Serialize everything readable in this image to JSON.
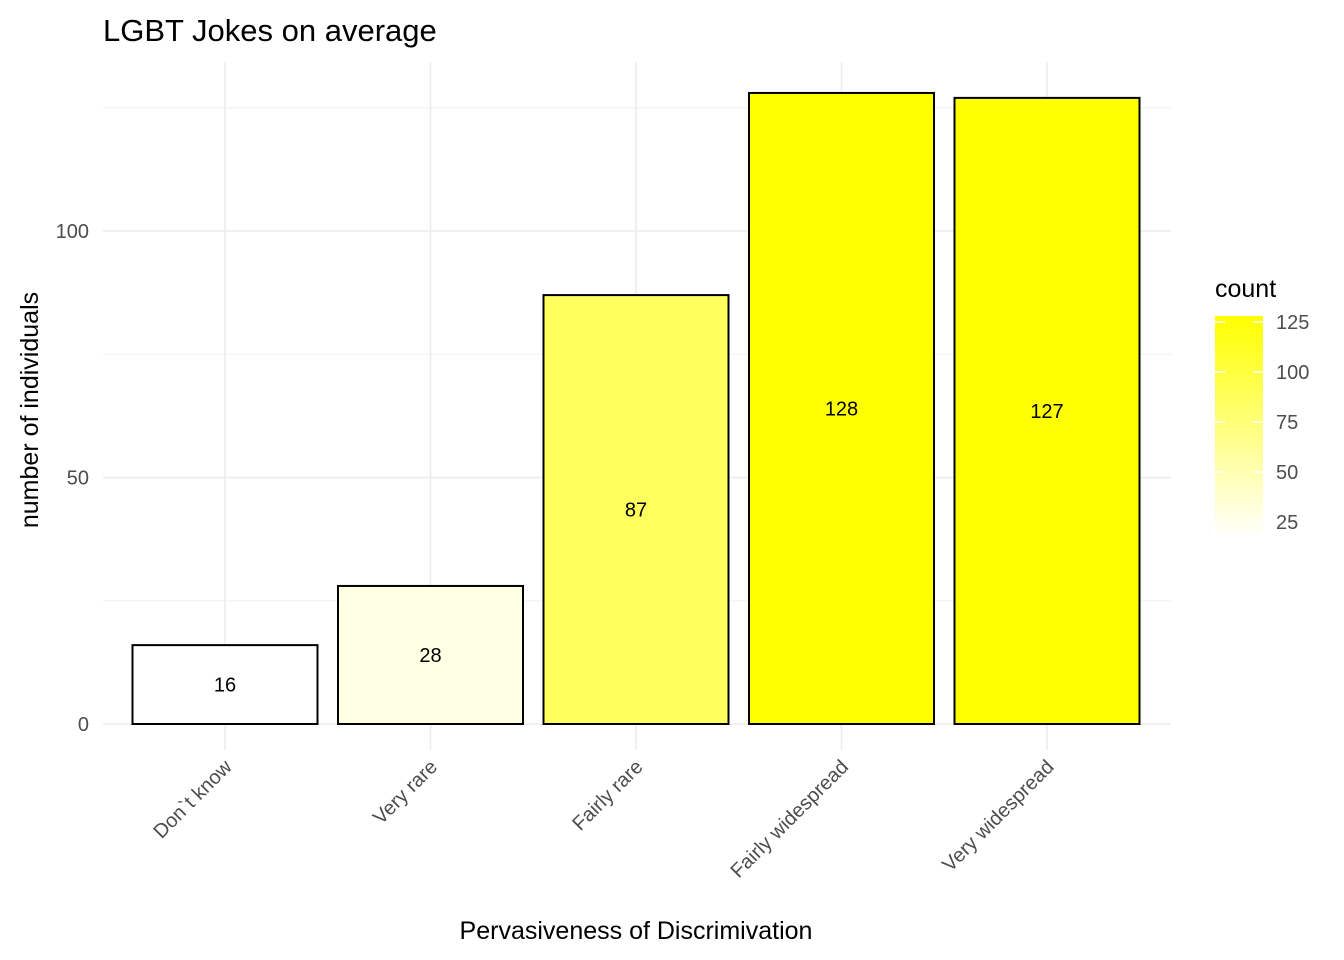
{
  "chart_data": {
    "type": "bar",
    "title": "LGBT Jokes on average",
    "xlabel": "Pervasiveness of Discrimivation",
    "ylabel": "number of individuals",
    "categories": [
      "Don`t know",
      "Very rare",
      "Fairly rare",
      "Fairly widespread",
      "Very widespread"
    ],
    "values": [
      16,
      28,
      87,
      128,
      127
    ],
    "data_labels": [
      "16",
      "28",
      "87",
      "128",
      "127"
    ],
    "ylim": [
      0,
      132
    ],
    "yticks": [
      0,
      50,
      100
    ],
    "ytick_labels": [
      "0",
      "50",
      "100"
    ],
    "grid": true,
    "fill_scale": {
      "low": "#ffffff",
      "high": "#ffff00",
      "domain": [
        16,
        128
      ]
    },
    "bar_outline": "#000000",
    "legend": {
      "title": "count",
      "placement": "right",
      "ticks": [
        25,
        50,
        75,
        100,
        125
      ],
      "tick_labels": [
        "25",
        "50",
        "75",
        "100",
        "125"
      ]
    }
  }
}
